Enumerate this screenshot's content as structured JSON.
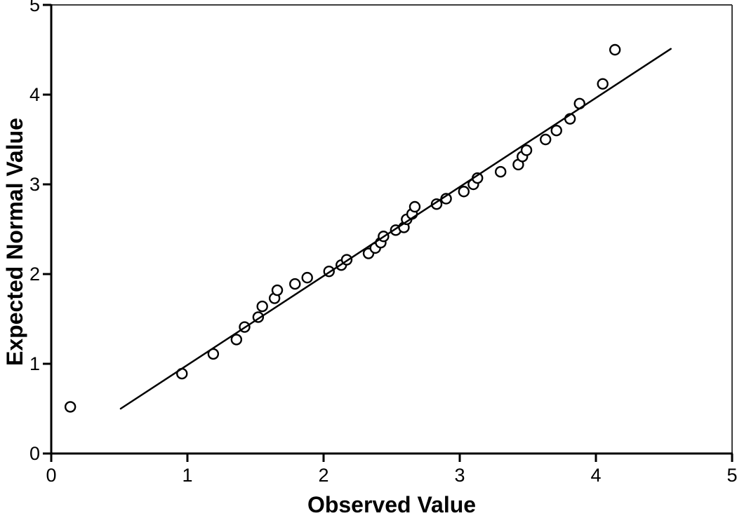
{
  "page": {
    "background": "#ffffff"
  },
  "chart_data": {
    "type": "scatter",
    "subtype": "normal-qq-plot",
    "title": "",
    "xlabel": "Observed Value",
    "ylabel": "Expected Normal Value",
    "xlim": [
      0,
      5
    ],
    "ylim": [
      0,
      5
    ],
    "xticks": [
      0,
      1,
      2,
      3,
      4,
      5
    ],
    "yticks": [
      0,
      1,
      2,
      3,
      4,
      5
    ],
    "grid": false,
    "legend": "none",
    "points": [
      [
        0.14,
        0.52
      ],
      [
        0.96,
        0.89
      ],
      [
        1.19,
        1.11
      ],
      [
        1.36,
        1.27
      ],
      [
        1.42,
        1.41
      ],
      [
        1.52,
        1.52
      ],
      [
        1.55,
        1.64
      ],
      [
        1.64,
        1.73
      ],
      [
        1.66,
        1.82
      ],
      [
        1.79,
        1.89
      ],
      [
        1.88,
        1.96
      ],
      [
        2.04,
        2.03
      ],
      [
        2.13,
        2.1
      ],
      [
        2.17,
        2.16
      ],
      [
        2.33,
        2.23
      ],
      [
        2.38,
        2.29
      ],
      [
        2.42,
        2.35
      ],
      [
        2.44,
        2.42
      ],
      [
        2.53,
        2.49
      ],
      [
        2.59,
        2.52
      ],
      [
        2.61,
        2.61
      ],
      [
        2.65,
        2.67
      ],
      [
        2.67,
        2.75
      ],
      [
        2.83,
        2.78
      ],
      [
        2.9,
        2.84
      ],
      [
        3.03,
        2.92
      ],
      [
        3.1,
        3.0
      ],
      [
        3.13,
        3.07
      ],
      [
        3.3,
        3.14
      ],
      [
        3.43,
        3.22
      ],
      [
        3.46,
        3.31
      ],
      [
        3.49,
        3.38
      ],
      [
        3.63,
        3.5
      ],
      [
        3.71,
        3.6
      ],
      [
        3.81,
        3.73
      ],
      [
        3.88,
        3.9
      ],
      [
        4.05,
        4.12
      ],
      [
        4.14,
        4.5
      ]
    ],
    "fit_line": {
      "x1": 0.51,
      "y1": 0.5,
      "x2": 4.55,
      "y2": 4.51
    },
    "colors": {
      "background": "#ffffff",
      "frame": "#3d3d3d",
      "axis": "#000000",
      "tick": "#000000",
      "text": "#000000",
      "point_stroke": "#000000",
      "point_fill": "#ffffff",
      "line": "#000000"
    }
  }
}
